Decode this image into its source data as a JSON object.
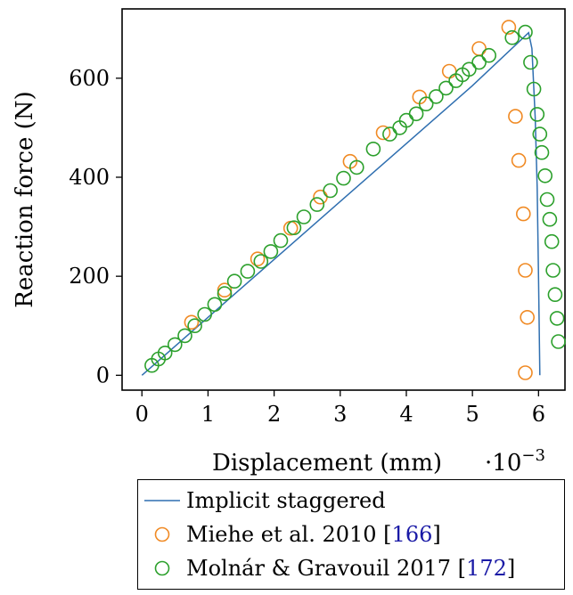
{
  "chart_data": {
    "type": "scatter",
    "xlabel": "Displacement (mm)",
    "ylabel": "Reaction force (N)",
    "x_multiplier_label": "·10",
    "x_multiplier_exponent": "−3",
    "xlim": [
      -0.3,
      6.4
    ],
    "ylim": [
      -30,
      740
    ],
    "x_ticks": [
      0,
      1,
      2,
      3,
      4,
      5,
      6
    ],
    "y_ticks": [
      0,
      200,
      400,
      600
    ],
    "grid": false,
    "legend_position": "below",
    "colors": {
      "line": "#2f6fb0",
      "miehe": "#f08a24",
      "molnar": "#2ca02c"
    },
    "series": [
      {
        "name": "Implicit staggered",
        "kind": "line",
        "x": [
          0.0,
          1.0,
          2.0,
          3.0,
          4.0,
          5.0,
          5.85,
          5.9,
          5.95,
          5.98,
          6.0,
          6.02
        ],
        "y": [
          0,
          117,
          234,
          351,
          468,
          585,
          692,
          660,
          520,
          380,
          200,
          0
        ]
      },
      {
        "name": "Miehe et al. 2010",
        "citation": "166",
        "kind": "scatter",
        "x": [
          0.75,
          1.25,
          1.75,
          2.25,
          2.7,
          3.15,
          3.65,
          4.2,
          4.65,
          5.1,
          5.55,
          5.65,
          5.7,
          5.77,
          5.8,
          5.83,
          5.8
        ],
        "y": [
          107,
          172,
          235,
          297,
          360,
          432,
          490,
          562,
          614,
          660,
          703,
          523,
          434,
          326,
          212,
          117,
          5
        ]
      },
      {
        "name": "Molnár & Gravouil 2017",
        "citation": "172",
        "kind": "scatter",
        "x": [
          0.15,
          0.25,
          0.35,
          0.5,
          0.65,
          0.8,
          0.95,
          1.1,
          1.25,
          1.4,
          1.6,
          1.8,
          1.95,
          2.1,
          2.3,
          2.45,
          2.65,
          2.85,
          3.05,
          3.25,
          3.5,
          3.75,
          3.9,
          4.0,
          4.15,
          4.3,
          4.45,
          4.6,
          4.75,
          4.85,
          4.95,
          5.1,
          5.25,
          5.6,
          5.8,
          5.88,
          5.93,
          5.98,
          6.02,
          6.05,
          6.1,
          6.13,
          6.17,
          6.2,
          6.22,
          6.25,
          6.28,
          6.3
        ],
        "y": [
          20,
          33,
          45,
          62,
          80,
          100,
          123,
          143,
          165,
          190,
          210,
          230,
          250,
          272,
          298,
          320,
          345,
          373,
          398,
          420,
          457,
          487,
          500,
          515,
          528,
          548,
          563,
          580,
          595,
          607,
          618,
          632,
          646,
          682,
          693,
          632,
          578,
          527,
          487,
          450,
          403,
          355,
          315,
          270,
          212,
          163,
          115,
          68
        ]
      }
    ]
  },
  "legend": {
    "items": [
      {
        "label": "Implicit staggered",
        "citation": ""
      },
      {
        "label": "Miehe et al. 2010 ",
        "citation": "166"
      },
      {
        "label": "Molnár & Gravouil 2017 ",
        "citation": "172"
      }
    ]
  }
}
